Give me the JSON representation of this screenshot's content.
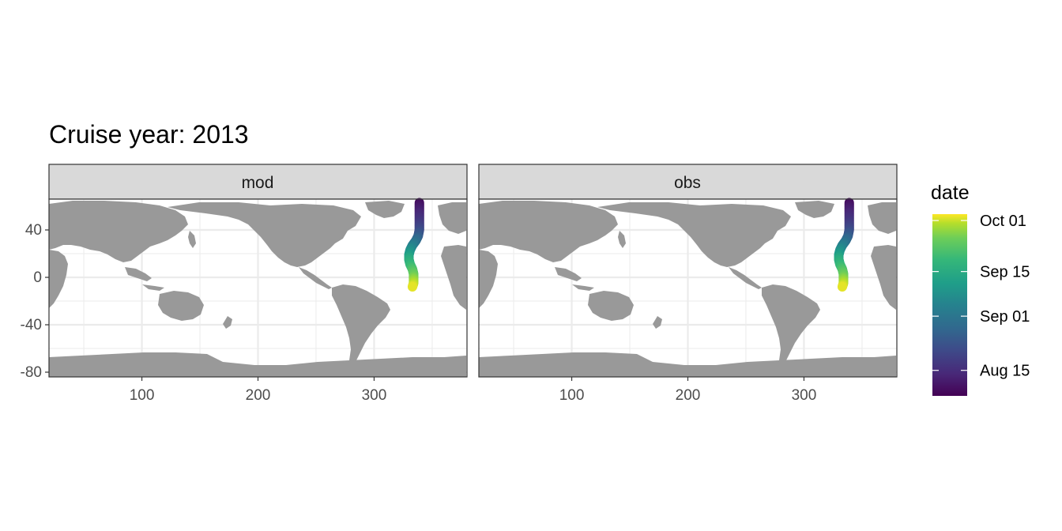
{
  "title": "Cruise year: 2013",
  "chart_data": {
    "type": "scatter",
    "title": "Cruise year: 2013",
    "xlabel": "",
    "ylabel": "",
    "xlim": [
      20,
      380
    ],
    "ylim": [
      -84,
      66
    ],
    "x_ticks": [
      100,
      200,
      300
    ],
    "y_ticks": [
      40,
      0,
      -40,
      -80
    ],
    "x_tick_labels": [
      "100",
      "200",
      "300"
    ],
    "y_tick_labels": [
      "40",
      "0",
      "-40",
      "-80"
    ],
    "grid": true,
    "panels": [
      {
        "name": "mod",
        "points": [
          {
            "x": 339,
            "y": 63,
            "date": "2013-08-09"
          },
          {
            "x": 339,
            "y": 57,
            "date": "2013-08-12"
          },
          {
            "x": 339,
            "y": 51,
            "date": "2013-08-15"
          },
          {
            "x": 339,
            "y": 45,
            "date": "2013-08-18"
          },
          {
            "x": 339,
            "y": 40,
            "date": "2013-08-21"
          },
          {
            "x": 338,
            "y": 35,
            "date": "2013-08-25"
          },
          {
            "x": 336,
            "y": 31,
            "date": "2013-08-29"
          },
          {
            "x": 333,
            "y": 27,
            "date": "2013-09-03"
          },
          {
            "x": 331,
            "y": 23,
            "date": "2013-09-07"
          },
          {
            "x": 330,
            "y": 19,
            "date": "2013-09-11"
          },
          {
            "x": 330,
            "y": 15,
            "date": "2013-09-15"
          },
          {
            "x": 331,
            "y": 11,
            "date": "2013-09-18"
          },
          {
            "x": 333,
            "y": 7,
            "date": "2013-09-21"
          },
          {
            "x": 334,
            "y": 3,
            "date": "2013-09-24"
          },
          {
            "x": 334,
            "y": -1,
            "date": "2013-09-27"
          },
          {
            "x": 334,
            "y": -5,
            "date": "2013-09-30"
          },
          {
            "x": 333,
            "y": -8,
            "date": "2013-10-02"
          }
        ]
      },
      {
        "name": "obs",
        "points": [
          {
            "x": 339,
            "y": 63,
            "date": "2013-08-09"
          },
          {
            "x": 339,
            "y": 57,
            "date": "2013-08-12"
          },
          {
            "x": 339,
            "y": 51,
            "date": "2013-08-15"
          },
          {
            "x": 339,
            "y": 45,
            "date": "2013-08-18"
          },
          {
            "x": 339,
            "y": 40,
            "date": "2013-08-21"
          },
          {
            "x": 338,
            "y": 35,
            "date": "2013-08-25"
          },
          {
            "x": 336,
            "y": 31,
            "date": "2013-08-29"
          },
          {
            "x": 333,
            "y": 27,
            "date": "2013-09-03"
          },
          {
            "x": 331,
            "y": 23,
            "date": "2013-09-07"
          },
          {
            "x": 330,
            "y": 19,
            "date": "2013-09-11"
          },
          {
            "x": 330,
            "y": 15,
            "date": "2013-09-15"
          },
          {
            "x": 331,
            "y": 11,
            "date": "2013-09-18"
          },
          {
            "x": 333,
            "y": 7,
            "date": "2013-09-21"
          },
          {
            "x": 334,
            "y": 3,
            "date": "2013-09-24"
          },
          {
            "x": 334,
            "y": -1,
            "date": "2013-09-27"
          },
          {
            "x": 334,
            "y": -5,
            "date": "2013-09-30"
          },
          {
            "x": 333,
            "y": -8,
            "date": "2013-10-02"
          }
        ]
      }
    ],
    "color_scale": {
      "title": "date",
      "palette": "viridis",
      "range": [
        "2013-08-07",
        "2013-10-03"
      ],
      "breaks": [
        {
          "label": "Oct 01",
          "date": "2013-10-01"
        },
        {
          "label": "Sep 15",
          "date": "2013-09-15"
        },
        {
          "label": "Sep 01",
          "date": "2013-09-01"
        },
        {
          "label": "Aug 15",
          "date": "2013-08-15"
        }
      ]
    },
    "colors": {
      "land": "#999999",
      "ocean": "#ffffff",
      "strip": "#d9d9d9",
      "grid": "#ebebeb",
      "border": "#333333"
    }
  }
}
